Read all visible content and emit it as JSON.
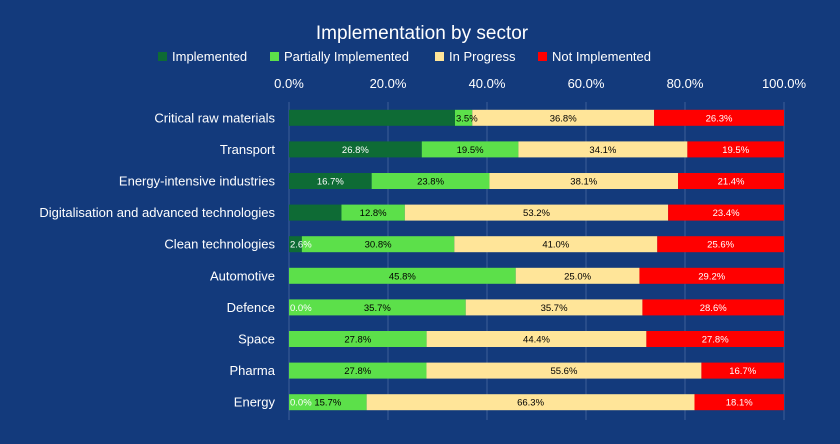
{
  "chart_data": {
    "type": "bar",
    "orientation": "horizontal",
    "stacked": "percent",
    "title": "Implementation by sector",
    "xlim": [
      0,
      100
    ],
    "xticks": [
      "0.0%",
      "20.0%",
      "40.0%",
      "60.0%",
      "80.0%",
      "100.0%"
    ],
    "legend_position": "top",
    "categories": [
      "Critical raw materials",
      "Transport",
      "Energy-intensive industries",
      "Digitalisation and advanced technologies",
      "Clean technologies",
      "Automotive",
      "Defence",
      "Space",
      "Pharma",
      "Energy"
    ],
    "series": [
      {
        "name": "Implemented",
        "color": "#0e6b35",
        "text_color": "#ffffff",
        "values": [
          33.6,
          26.8,
          16.7,
          10.6,
          2.6,
          0,
          0.0,
          0,
          0,
          0.0
        ],
        "labels": [
          "",
          "26.8%",
          "16.7%",
          "",
          "2.6%",
          "",
          "0.0%",
          "",
          "",
          "0.0%"
        ]
      },
      {
        "name": "Partially Implemented",
        "color": "#5ce04a",
        "text_color": "#000000",
        "values": [
          3.5,
          19.5,
          23.8,
          12.8,
          30.8,
          45.8,
          35.7,
          27.8,
          27.8,
          15.7
        ],
        "labels": [
          "3.5%",
          "19.5%",
          "23.8%",
          "12.8%",
          "30.8%",
          "45.8%",
          "35.7%",
          "27.8%",
          "27.8%",
          "15.7%"
        ]
      },
      {
        "name": "In Progress",
        "color": "#ffe599",
        "text_color": "#000000",
        "values": [
          36.8,
          34.1,
          38.1,
          53.2,
          41.0,
          25.0,
          35.7,
          44.4,
          55.6,
          66.3
        ],
        "labels": [
          "36.8%",
          "34.1%",
          "38.1%",
          "53.2%",
          "41.0%",
          "25.0%",
          "35.7%",
          "44.4%",
          "55.6%",
          "66.3%"
        ]
      },
      {
        "name": "Not Implemented",
        "color": "#ff0000",
        "text_color": "#ffffff",
        "values": [
          26.3,
          19.5,
          21.4,
          23.4,
          25.6,
          29.2,
          28.6,
          27.8,
          16.7,
          18.1
        ],
        "labels": [
          "26.3%",
          "19.5%",
          "21.4%",
          "23.4%",
          "25.6%",
          "29.2%",
          "28.6%",
          "27.8%",
          "16.7%",
          "18.1%"
        ]
      }
    ]
  }
}
